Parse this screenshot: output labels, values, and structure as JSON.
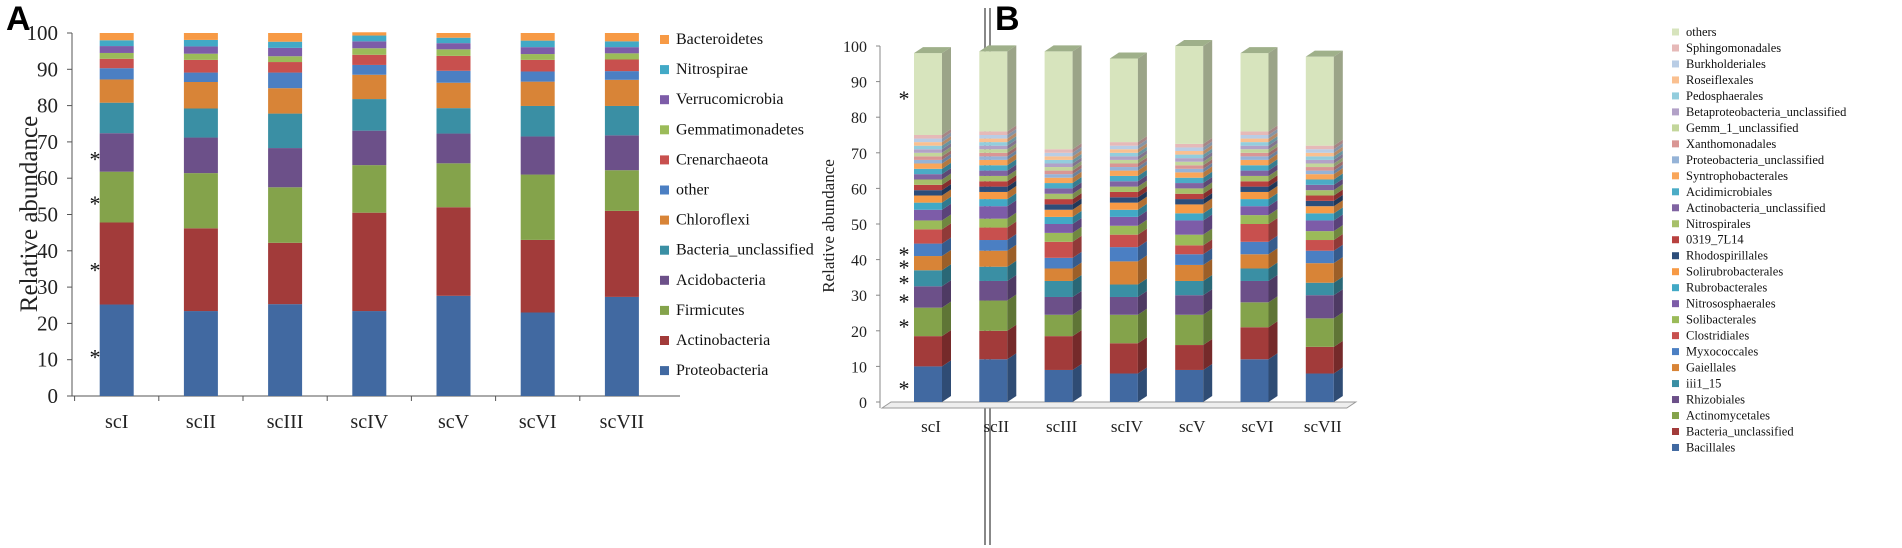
{
  "chart_data": [
    {
      "panel": "A",
      "type": "bar",
      "stacked": true,
      "title": "",
      "ylabel": "Relative abundance",
      "xlabel": "",
      "ylim": [
        0,
        100
      ],
      "yticks": [
        0,
        10,
        20,
        30,
        40,
        50,
        60,
        70,
        80,
        90,
        100
      ],
      "categories": [
        "scI",
        "scII",
        "scIII",
        "scIV",
        "scV",
        "scVI",
        "scVII"
      ],
      "legend_position": "right",
      "significance_markers": [
        {
          "series": "Proteobacteria",
          "label": "*"
        },
        {
          "series": "Actinobacteria",
          "label": "*"
        },
        {
          "series": "Firmicutes",
          "label": "*"
        },
        {
          "series": "Acidobacteria",
          "label": "*"
        }
      ],
      "series": [
        {
          "name": "Proteobacteria",
          "color": "#4169a1",
          "values": [
            25.2,
            23.4,
            25.3,
            23.4,
            27.6,
            23.0,
            27.3
          ]
        },
        {
          "name": "Actinobacteria",
          "color": "#a23b3a",
          "values": [
            22.6,
            22.8,
            16.9,
            27.1,
            24.4,
            20.0,
            23.7
          ]
        },
        {
          "name": "Firmicutes",
          "color": "#84a34b",
          "values": [
            14.0,
            15.2,
            15.3,
            13.1,
            12.1,
            18.0,
            11.2
          ]
        },
        {
          "name": "Acidobacteria",
          "color": "#6c5089",
          "values": [
            10.6,
            9.8,
            10.8,
            9.5,
            8.2,
            10.5,
            9.6
          ]
        },
        {
          "name": "Bacteria_unclassified",
          "color": "#3a8fa4",
          "values": [
            8.4,
            8.0,
            9.5,
            8.7,
            7.0,
            8.4,
            8.1
          ]
        },
        {
          "name": "Chloroflexi",
          "color": "#d88437",
          "values": [
            6.4,
            7.3,
            7.0,
            6.7,
            7.0,
            6.7,
            7.2
          ]
        },
        {
          "name": "other",
          "color": "#4b7fc3",
          "values": [
            3.1,
            2.6,
            4.3,
            2.7,
            3.3,
            2.8,
            2.4
          ]
        },
        {
          "name": "Crenarchaeota",
          "color": "#c8504e",
          "values": [
            2.6,
            3.5,
            2.9,
            2.8,
            4.1,
            3.2,
            3.2
          ]
        },
        {
          "name": "Gemmatimonadetes",
          "color": "#9bbb59",
          "values": [
            1.6,
            1.7,
            1.6,
            1.8,
            1.8,
            1.6,
            1.7
          ]
        },
        {
          "name": "Verrucomicrobia",
          "color": "#7d5ca8",
          "values": [
            1.9,
            2.0,
            2.3,
            1.9,
            1.7,
            1.9,
            1.7
          ]
        },
        {
          "name": "Nitrospirae",
          "color": "#42a9c6",
          "values": [
            1.6,
            1.8,
            1.7,
            1.6,
            1.5,
            1.8,
            1.6
          ]
        },
        {
          "name": "Bacteroidetes",
          "color": "#f79a45",
          "values": [
            2.0,
            1.9,
            2.4,
            0.9,
            1.3,
            2.1,
            2.3
          ]
        }
      ]
    },
    {
      "panel": "B",
      "type": "bar",
      "stacked": true,
      "style": "3d",
      "title": "",
      "ylabel": "Relative abundance",
      "xlabel": "",
      "ylim": [
        0,
        100
      ],
      "yticks": [
        0,
        10,
        20,
        30,
        40,
        50,
        60,
        70,
        80,
        90,
        100
      ],
      "categories": [
        "scI",
        "scII",
        "scIII",
        "scIV",
        "scV",
        "scVI",
        "scVII"
      ],
      "legend_position": "right",
      "significance_markers": [
        {
          "series": "Bacillales",
          "label": "*"
        },
        {
          "series": "Actinomycetales",
          "label": "*"
        },
        {
          "series": "Rhizobiales",
          "label": "*"
        },
        {
          "series": "iii1_15",
          "label": "*"
        },
        {
          "series": "Gaiellales",
          "label": "*"
        },
        {
          "series": "Myxococcales",
          "label": "*"
        },
        {
          "series": "others",
          "label": "*"
        }
      ],
      "series": [
        {
          "name": "Bacillales",
          "color": "#4169a1",
          "values": [
            10.0,
            12.0,
            9.0,
            8.0,
            9.0,
            12.0,
            8.0
          ]
        },
        {
          "name": "Bacteria_unclassified",
          "color": "#a23b3a",
          "values": [
            8.5,
            8.0,
            9.5,
            8.5,
            7.0,
            9.0,
            7.5
          ]
        },
        {
          "name": "Actinomycetales",
          "color": "#84a34b",
          "values": [
            8.0,
            8.5,
            6.0,
            8.0,
            8.5,
            7.0,
            8.0
          ]
        },
        {
          "name": "Rhizobiales",
          "color": "#6c5089",
          "values": [
            6.0,
            5.5,
            5.0,
            5.0,
            5.5,
            6.0,
            6.5
          ]
        },
        {
          "name": "iii1_15",
          "color": "#3a8fa4",
          "values": [
            4.5,
            4.0,
            4.5,
            3.5,
            4.0,
            3.5,
            3.5
          ]
        },
        {
          "name": "Gaiellales",
          "color": "#d88437",
          "values": [
            4.0,
            4.5,
            3.5,
            6.5,
            4.5,
            4.0,
            5.5
          ]
        },
        {
          "name": "Myxococcales",
          "color": "#4b7fc3",
          "values": [
            3.5,
            3.0,
            3.0,
            4.0,
            3.0,
            3.5,
            3.5
          ]
        },
        {
          "name": "Clostridiales",
          "color": "#c8504e",
          "values": [
            4.0,
            3.5,
            4.5,
            3.5,
            2.5,
            5.0,
            3.0
          ]
        },
        {
          "name": "Solibacterales",
          "color": "#9bbb59",
          "values": [
            2.5,
            2.5,
            2.5,
            2.5,
            3.0,
            2.5,
            2.5
          ]
        },
        {
          "name": "Nitrososphaerales",
          "color": "#7d5ca8",
          "values": [
            3.0,
            3.5,
            2.5,
            2.5,
            4.0,
            2.5,
            3.0
          ]
        },
        {
          "name": "Rubrobacterales",
          "color": "#42a9c6",
          "values": [
            2.0,
            2.0,
            2.0,
            2.0,
            2.0,
            2.0,
            2.0
          ]
        },
        {
          "name": "Solirubrobacterales",
          "color": "#f79a45",
          "values": [
            2.0,
            2.0,
            2.0,
            2.0,
            2.5,
            2.0,
            2.0
          ]
        },
        {
          "name": "Rhodospirillales",
          "color": "#2c4d7a",
          "values": [
            1.5,
            1.5,
            1.5,
            1.5,
            1.5,
            1.5,
            1.5
          ]
        },
        {
          "name": "0319_7L14",
          "color": "#b8413f",
          "values": [
            1.5,
            1.5,
            1.5,
            1.5,
            1.5,
            1.5,
            1.5
          ]
        },
        {
          "name": "Nitrospirales",
          "color": "#a7c06a",
          "values": [
            1.5,
            1.5,
            1.5,
            1.5,
            1.5,
            1.5,
            1.5
          ]
        },
        {
          "name": "Actinobacteria_unclassified",
          "color": "#8064a2",
          "values": [
            1.5,
            1.5,
            1.5,
            1.5,
            1.5,
            1.5,
            1.5
          ]
        },
        {
          "name": "Acidimicrobiales",
          "color": "#4bacc6",
          "values": [
            1.5,
            1.5,
            1.5,
            1.5,
            1.5,
            1.5,
            1.5
          ]
        },
        {
          "name": "Syntrophobacterales",
          "color": "#f9a65a",
          "values": [
            1.5,
            1.5,
            1.5,
            1.5,
            1.5,
            1.5,
            1.5
          ]
        },
        {
          "name": "Proteobacteria_unclassified",
          "color": "#95b3d7",
          "values": [
            1.0,
            1.0,
            1.0,
            1.0,
            1.0,
            1.0,
            1.0
          ]
        },
        {
          "name": "Xanthomonadales",
          "color": "#d99694",
          "values": [
            1.0,
            1.0,
            1.0,
            1.0,
            1.0,
            1.0,
            1.0
          ]
        },
        {
          "name": "Gemm_1_unclassified",
          "color": "#c3d69b",
          "values": [
            1.0,
            1.0,
            1.0,
            1.0,
            1.0,
            1.0,
            1.0
          ]
        },
        {
          "name": "Betaproteobacteria_unclassified",
          "color": "#b2a1c7",
          "values": [
            1.0,
            1.0,
            1.0,
            1.0,
            1.0,
            1.0,
            1.0
          ]
        },
        {
          "name": "Pedosphaerales",
          "color": "#93cddd",
          "values": [
            1.0,
            1.0,
            1.0,
            1.0,
            1.0,
            1.0,
            1.0
          ]
        },
        {
          "name": "Roseiflexales",
          "color": "#fac090",
          "values": [
            1.0,
            1.0,
            1.0,
            1.0,
            1.0,
            1.0,
            1.0
          ]
        },
        {
          "name": "Burkholderiales",
          "color": "#b9cde5",
          "values": [
            1.0,
            1.0,
            1.0,
            1.0,
            1.0,
            1.0,
            1.0
          ]
        },
        {
          "name": "Sphingomonadales",
          "color": "#e6b9b8",
          "values": [
            1.0,
            1.0,
            1.0,
            1.0,
            1.0,
            1.0,
            1.0
          ]
        },
        {
          "name": "others",
          "color": "#d7e4bd",
          "values": [
            23.0,
            22.5,
            27.5,
            23.5,
            27.5,
            22.0,
            25.0
          ]
        }
      ]
    }
  ]
}
